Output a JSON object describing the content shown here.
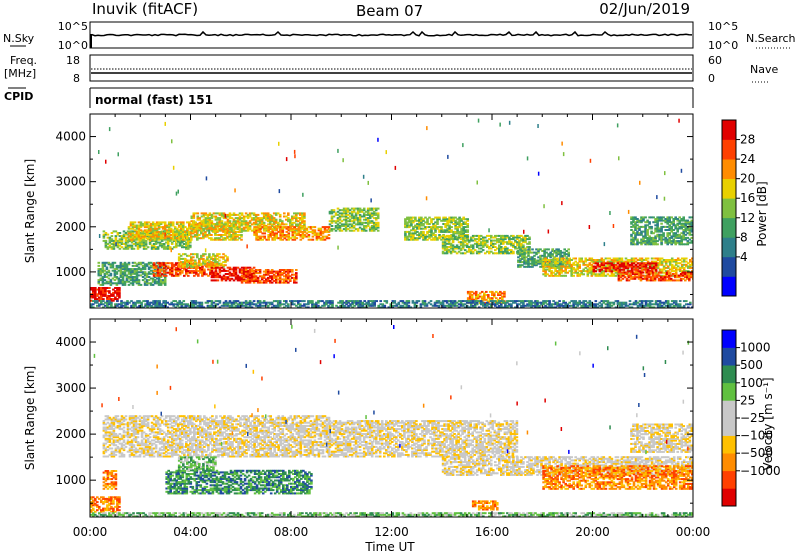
{
  "header": {
    "station": "Inuvik (fitACF)",
    "beam": "Beam 07",
    "date": "02/Jun/2019"
  },
  "info_panels": {
    "nsky_label": "N.Sky",
    "nsky_ticks": [
      "10^5",
      "10^0"
    ],
    "nsearch_label": "N.Search",
    "nsearch_ticks": [
      "10^5",
      "10^0"
    ],
    "freq_label": "Freq.",
    "freq_unit": "[MHz]",
    "freq_ticks": [
      "18",
      "8"
    ],
    "nave_label": "Nave",
    "nave_ticks": [
      "60",
      "0"
    ],
    "cpid_label": "CPID",
    "cpid_value": "normal (fast) 151"
  },
  "colors": {
    "power_scale": [
      "#0000ff",
      "#1f4aa0",
      "#2e7f8a",
      "#3fa060",
      "#7fc040",
      "#e8d000",
      "#ff8c00",
      "#ff4000",
      "#e00000"
    ],
    "velocity_scale": [
      "#e00000",
      "#ff4000",
      "#ff8c00",
      "#ffc000",
      "#c8c8c8",
      "#c8c8c8",
      "#60c040",
      "#2e8c50",
      "#1f4aa0",
      "#0000ff"
    ]
  },
  "chart_data": [
    {
      "type": "heatmap",
      "name": "power-panel",
      "ylabel": "Slant Range [km]",
      "yticks": [
        "1000",
        "2000",
        "3000",
        "4000"
      ],
      "ylim": [
        200,
        4500
      ],
      "xlim": [
        0,
        24
      ],
      "colorbar_label": "Power [dB]",
      "colorbar_ticks": [
        "28",
        "24",
        "20",
        "16",
        "12",
        "8",
        "4"
      ],
      "bands": [
        {
          "t0": 0.0,
          "t1": 1.2,
          "r0": 350,
          "r1": 650,
          "level": 8
        },
        {
          "t0": 0.3,
          "t1": 3.0,
          "r0": 700,
          "r1": 1200,
          "level": 3
        },
        {
          "t0": 0.5,
          "t1": 4.0,
          "r0": 1500,
          "r1": 1900,
          "level": 4
        },
        {
          "t0": 1.5,
          "t1": 6.0,
          "r0": 1700,
          "r1": 2100,
          "level": 5
        },
        {
          "t0": 2.5,
          "t1": 5.0,
          "r0": 900,
          "r1": 1200,
          "level": 7
        },
        {
          "t0": 3.5,
          "t1": 5.5,
          "r0": 1100,
          "r1": 1400,
          "level": 5
        },
        {
          "t0": 4.8,
          "t1": 6.5,
          "r0": 800,
          "r1": 1100,
          "level": 8
        },
        {
          "t0": 6.0,
          "t1": 8.2,
          "r0": 750,
          "r1": 1050,
          "level": 7
        },
        {
          "t0": 4.0,
          "t1": 8.5,
          "r0": 1900,
          "r1": 2300,
          "level": 5
        },
        {
          "t0": 6.5,
          "t1": 9.5,
          "r0": 1700,
          "r1": 2000,
          "level": 6
        },
        {
          "t0": 9.5,
          "t1": 11.5,
          "r0": 1900,
          "r1": 2400,
          "level": 4
        },
        {
          "t0": 12.5,
          "t1": 15.0,
          "r0": 1700,
          "r1": 2200,
          "level": 4
        },
        {
          "t0": 14.0,
          "t1": 17.5,
          "r0": 1400,
          "r1": 1800,
          "level": 4
        },
        {
          "t0": 15.0,
          "t1": 16.5,
          "r0": 300,
          "r1": 550,
          "level": 6
        },
        {
          "t0": 17.0,
          "t1": 19.0,
          "r0": 1100,
          "r1": 1500,
          "level": 3
        },
        {
          "t0": 18.0,
          "t1": 24.0,
          "r0": 900,
          "r1": 1300,
          "level": 5
        },
        {
          "t0": 20.0,
          "t1": 22.5,
          "r0": 1000,
          "r1": 1200,
          "level": 8
        },
        {
          "t0": 21.0,
          "t1": 24.0,
          "r0": 800,
          "r1": 1000,
          "level": 7
        },
        {
          "t0": 21.5,
          "t1": 24.0,
          "r0": 1600,
          "r1": 2200,
          "level": 3
        },
        {
          "t0": 0.0,
          "t1": 24.0,
          "r0": 200,
          "r1": 350,
          "level": 2
        }
      ]
    },
    {
      "type": "heatmap",
      "name": "velocity-panel",
      "ylabel": "Slant Range [km]",
      "yticks": [
        "1000",
        "2000",
        "3000",
        "4000"
      ],
      "ylim": [
        200,
        4500
      ],
      "xlim": [
        0,
        24
      ],
      "xlabel": "Time UT",
      "xticks": [
        "00:00",
        "04:00",
        "08:00",
        "12:00",
        "16:00",
        "20:00",
        "00:00"
      ],
      "colorbar_label": "Velocity [m s⁻¹]",
      "colorbar_ticks": [
        "1000",
        "500",
        "100",
        "25",
        "−25",
        "−100",
        "−500",
        "−1000"
      ],
      "bands": [
        {
          "t0": 0.0,
          "t1": 1.2,
          "r0": 300,
          "r1": 650,
          "level": 2
        },
        {
          "t0": 0.5,
          "t1": 1.0,
          "r0": 800,
          "r1": 1200,
          "level": 2
        },
        {
          "t0": 0.5,
          "t1": 9.5,
          "r0": 1500,
          "r1": 2400,
          "level": 4
        },
        {
          "t0": 3.0,
          "t1": 8.8,
          "r0": 700,
          "r1": 1200,
          "level": 7
        },
        {
          "t0": 3.5,
          "t1": 5.0,
          "r0": 1200,
          "r1": 1500,
          "level": 6
        },
        {
          "t0": 9.5,
          "t1": 17.0,
          "r0": 1500,
          "r1": 2300,
          "level": 4
        },
        {
          "t0": 14.0,
          "t1": 24.0,
          "r0": 1100,
          "r1": 1500,
          "level": 4
        },
        {
          "t0": 15.2,
          "t1": 16.2,
          "r0": 350,
          "r1": 550,
          "level": 2
        },
        {
          "t0": 18.0,
          "t1": 24.0,
          "r0": 800,
          "r1": 1300,
          "level": 2
        },
        {
          "t0": 21.5,
          "t1": 24.0,
          "r0": 1600,
          "r1": 2200,
          "level": 4
        },
        {
          "t0": 0.0,
          "t1": 24.0,
          "r0": 200,
          "r1": 300,
          "level": 6
        }
      ]
    }
  ]
}
